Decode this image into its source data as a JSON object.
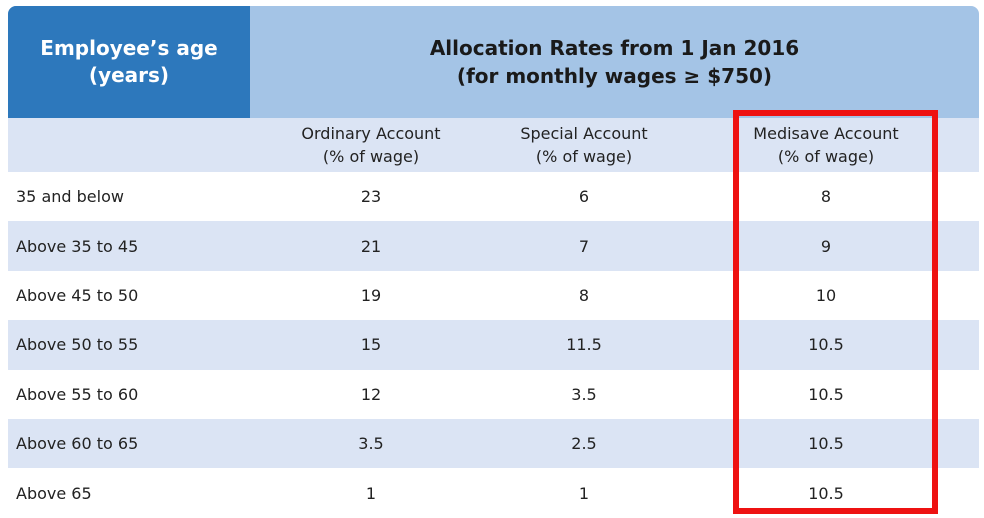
{
  "header": {
    "age_title": "Employee’s age",
    "age_subtitle": "(years)",
    "rates_title": "Allocation Rates from 1 Jan 2016",
    "rates_subtitle": "(for monthly wages ≥ $750)"
  },
  "columns": [
    {
      "name": "Ordinary Account",
      "unit": "(% of wage)"
    },
    {
      "name": "Special Account",
      "unit": "(% of wage)"
    },
    {
      "name": "Medisave Account",
      "unit": "(% of wage)"
    }
  ],
  "rows": [
    {
      "age": "35 and below",
      "ordinary": "23",
      "special": "6",
      "medisave": "8"
    },
    {
      "age": "Above 35 to 45",
      "ordinary": "21",
      "special": "7",
      "medisave": "9"
    },
    {
      "age": "Above 45 to 50",
      "ordinary": "19",
      "special": "8",
      "medisave": "10"
    },
    {
      "age": "Above 50 to 55",
      "ordinary": "15",
      "special": "11.5",
      "medisave": "10.5"
    },
    {
      "age": "Above 55 to 60",
      "ordinary": "12",
      "special": "3.5",
      "medisave": "10.5"
    },
    {
      "age": "Above 60 to 65",
      "ordinary": "3.5",
      "special": "2.5",
      "medisave": "10.5"
    },
    {
      "age": "Above 65",
      "ordinary": "1",
      "special": "1",
      "medisave": "10.5"
    }
  ],
  "colors": {
    "age_header_bg": "#2d78bc",
    "rates_header_bg": "#a4c4e6",
    "stripe_bg": "#dbe4f4",
    "highlight_border": "#ee1111"
  }
}
